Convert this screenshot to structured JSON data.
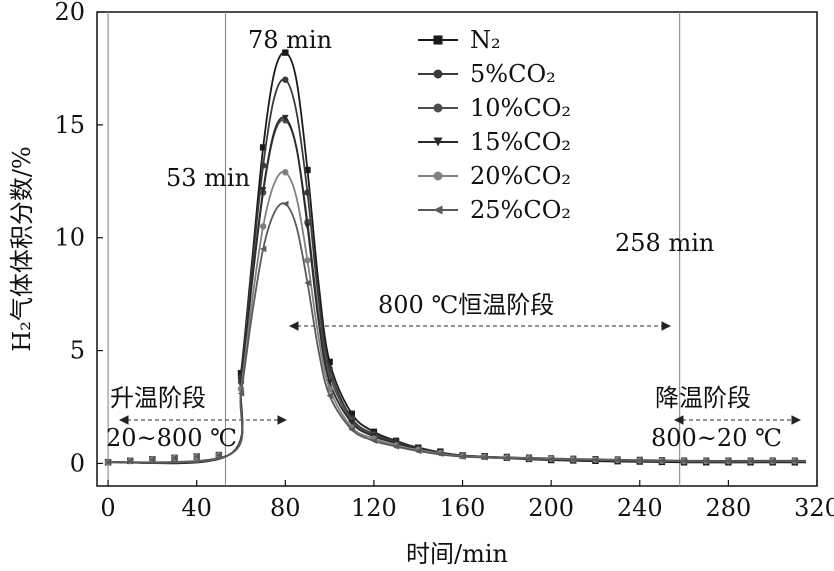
{
  "chart_data": {
    "type": "line",
    "xlabel": "时间/min",
    "ylabel": "H₂气体体积分数/%",
    "xlim": [
      -5,
      320
    ],
    "ylim": [
      -1,
      20
    ],
    "xticks": [
      0,
      40,
      80,
      120,
      160,
      200,
      240,
      280,
      320
    ],
    "yticks": [
      0,
      5,
      10,
      15,
      20
    ],
    "grid": false,
    "legend_position": "top-center",
    "vertical_lines": [
      0,
      53,
      258
    ],
    "annotations": {
      "peak_time": "78 min",
      "start_time": "53 min",
      "end_time": "258 min",
      "constant_stage": "800 ℃恒温阶段",
      "heating_stage": "升温阶段",
      "heating_range": "20~800 ℃",
      "cooling_stage": "降温阶段",
      "cooling_range": "800~20 ℃"
    },
    "series": [
      {
        "name": "N₂",
        "marker": "square",
        "color": "#1a1a1a",
        "peak": 18.2,
        "tail": 0.05,
        "x": [
          0,
          55,
          60,
          65,
          70,
          75,
          80,
          85,
          90,
          95,
          100,
          110,
          120,
          130,
          140,
          160,
          200,
          260,
          315
        ],
        "y": [
          0.05,
          0.4,
          4.0,
          9.0,
          14.0,
          17.3,
          18.2,
          17.0,
          13.0,
          8.0,
          4.5,
          2.2,
          1.4,
          1.0,
          0.7,
          0.35,
          0.15,
          0.05,
          0.05
        ]
      },
      {
        "name": "5%CO₂",
        "marker": "circle",
        "color": "#3a3a3a",
        "peak": 17.0,
        "tail": 0.1,
        "x": [
          0,
          55,
          60,
          65,
          70,
          75,
          80,
          85,
          90,
          95,
          100,
          110,
          120,
          130,
          140,
          160,
          200,
          260,
          315
        ],
        "y": [
          0.05,
          0.4,
          3.8,
          8.7,
          13.2,
          16.2,
          17.0,
          15.6,
          12.0,
          7.3,
          4.2,
          2.0,
          1.3,
          0.95,
          0.7,
          0.35,
          0.2,
          0.1,
          0.1
        ]
      },
      {
        "name": "10%CO₂",
        "marker": "circle",
        "color": "#4d4d4d",
        "peak": 15.2,
        "tail": 0.1,
        "x": [
          0,
          55,
          60,
          65,
          70,
          75,
          80,
          85,
          90,
          95,
          100,
          110,
          120,
          130,
          140,
          160,
          200,
          260,
          315
        ],
        "y": [
          0.05,
          0.4,
          3.6,
          8.0,
          12.0,
          14.6,
          15.2,
          14.0,
          10.7,
          6.6,
          3.9,
          1.9,
          1.25,
          0.9,
          0.65,
          0.35,
          0.2,
          0.1,
          0.1
        ]
      },
      {
        "name": "15%CO₂",
        "marker": "triangle-down",
        "color": "#2b2b2b",
        "peak": 15.3,
        "tail": 0.12,
        "x": [
          0,
          55,
          60,
          65,
          70,
          75,
          80,
          85,
          90,
          95,
          100,
          110,
          120,
          130,
          140,
          160,
          200,
          260,
          315
        ],
        "y": [
          0.05,
          0.4,
          3.6,
          8.1,
          12.1,
          14.7,
          15.3,
          14.0,
          10.5,
          6.3,
          3.6,
          1.8,
          1.2,
          0.9,
          0.65,
          0.35,
          0.22,
          0.12,
          0.12
        ]
      },
      {
        "name": "20%CO₂",
        "marker": "circle",
        "color": "#808080",
        "peak": 12.9,
        "tail": 0.1,
        "x": [
          0,
          55,
          60,
          65,
          70,
          75,
          80,
          85,
          90,
          95,
          100,
          110,
          120,
          130,
          140,
          160,
          200,
          260,
          315
        ],
        "y": [
          0.05,
          0.4,
          3.3,
          7.2,
          10.5,
          12.4,
          12.9,
          11.8,
          9.0,
          5.6,
          3.3,
          1.6,
          1.1,
          0.8,
          0.6,
          0.32,
          0.2,
          0.1,
          0.1
        ]
      },
      {
        "name": "25%CO₂",
        "marker": "triangle-left",
        "color": "#5a5a5a",
        "peak": 11.5,
        "tail": 0.1,
        "x": [
          0,
          55,
          60,
          65,
          70,
          75,
          80,
          85,
          90,
          95,
          100,
          110,
          120,
          130,
          140,
          160,
          200,
          260,
          315
        ],
        "y": [
          0.05,
          0.4,
          3.1,
          6.6,
          9.5,
          11.1,
          11.5,
          10.5,
          8.0,
          5.0,
          3.0,
          1.5,
          1.0,
          0.75,
          0.55,
          0.3,
          0.18,
          0.1,
          0.1
        ]
      }
    ]
  }
}
